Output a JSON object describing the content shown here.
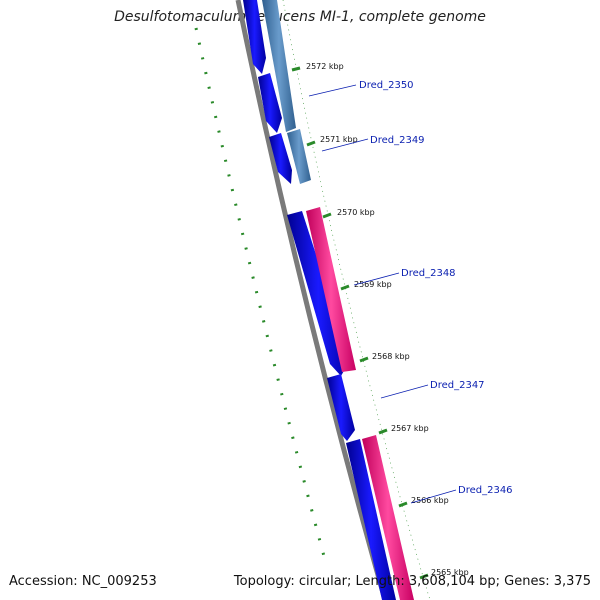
{
  "title": "Desulfotomaculum reducens MI-1, complete genome",
  "accession": "Accession: NC_009253",
  "summary": "Topology: circular; Length: 3,608,104 bp; Genes: 3,375",
  "colors": {
    "backbone": "#808080",
    "cds": "#0000ee",
    "cds_pale": "#4a7fb5",
    "rna": "#ff2d8c",
    "tick": "#2a8a2a",
    "label": "#0a1fb0"
  },
  "ticks": [
    "2572 kbp",
    "2571 kbp",
    "2570 kbp",
    "2569 kbp",
    "2568 kbp",
    "2567 kbp",
    "2566 kbp",
    "2565 kbp"
  ],
  "genes": [
    "Dred_2350",
    "Dred_2349",
    "Dred_2348",
    "Dred_2347",
    "Dred_2346"
  ]
}
